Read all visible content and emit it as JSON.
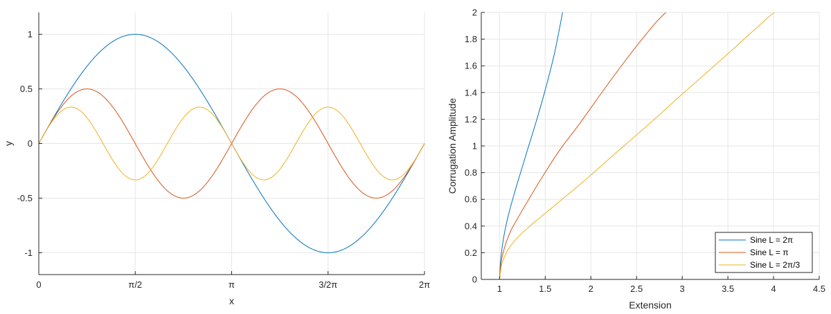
{
  "chart_data": [
    {
      "type": "line",
      "xlabel": "x",
      "ylabel": "y",
      "xlim": [
        0,
        6.2832
      ],
      "ylim": [
        -1.2,
        1.2
      ],
      "grid": true,
      "xticks": [
        {
          "value": 0,
          "label": "0"
        },
        {
          "value": 1.5708,
          "label": "π/2"
        },
        {
          "value": 3.1416,
          "label": "π"
        },
        {
          "value": 4.7124,
          "label": "3/2π"
        },
        {
          "value": 6.2832,
          "label": "2π"
        }
      ],
      "yticks": [
        {
          "value": 1,
          "label": "1"
        },
        {
          "value": 0.5,
          "label": "0.5"
        },
        {
          "value": 0,
          "label": "0"
        },
        {
          "value": -0.5,
          "label": "-0.5"
        },
        {
          "value": -1,
          "label": "-1"
        }
      ],
      "x": [
        0,
        0.3927,
        0.7854,
        1.1781,
        1.5708,
        1.9635,
        2.3562,
        2.7489,
        3.1416,
        3.5343,
        3.927,
        4.3197,
        4.7124,
        5.1051,
        5.4978,
        5.8905,
        6.2832
      ],
      "series": [
        {
          "color": "#0072BD",
          "values": [
            0,
            0.383,
            0.707,
            0.924,
            1,
            0.924,
            0.707,
            0.383,
            0,
            -0.383,
            -0.707,
            -0.924,
            -1,
            -0.924,
            -0.707,
            -0.383,
            0
          ]
        },
        {
          "color": "#D95319",
          "values": [
            0,
            0.354,
            0.5,
            0.354,
            0,
            -0.354,
            -0.5,
            -0.354,
            0,
            0.354,
            0.5,
            0.354,
            0,
            -0.354,
            -0.5,
            -0.354,
            0
          ]
        },
        {
          "color": "#EDB120",
          "values": [
            0,
            0.308,
            0.236,
            -0.128,
            -0.333,
            -0.128,
            0.236,
            0.308,
            0,
            -0.308,
            -0.236,
            0.128,
            0.333,
            0.128,
            -0.236,
            -0.308,
            0
          ]
        }
      ]
    },
    {
      "type": "line",
      "xlabel": "Extension",
      "ylabel": "Corrugation Amplitude",
      "xlim": [
        0.8,
        4.5
      ],
      "ylim": [
        0,
        2
      ],
      "grid": true,
      "legend_position": "bottom-right",
      "xticks": [
        "1",
        "1.5",
        "2",
        "2.5",
        "3",
        "3.5",
        "4",
        "4.5"
      ],
      "yticks": [
        "0",
        "0.2",
        "0.4",
        "0.6",
        "0.8",
        "1",
        "1.2",
        "1.4",
        "1.6",
        "1.8",
        "2"
      ],
      "series": [
        {
          "name": "Sine L = 2π",
          "color": "#0072BD",
          "x": [
            1,
            1.01,
            1.03,
            1.06,
            1.1,
            1.16,
            1.23,
            1.31,
            1.4,
            1.5,
            1.6,
            1.69
          ],
          "y": [
            0,
            0.13,
            0.25,
            0.37,
            0.49,
            0.64,
            0.8,
            0.98,
            1.18,
            1.42,
            1.69,
            2.0
          ]
        },
        {
          "name": "Sine L = π",
          "color": "#D95319",
          "x": [
            1,
            1.02,
            1.06,
            1.12,
            1.2,
            1.32,
            1.47,
            1.66,
            1.88,
            2.13,
            2.4,
            2.68,
            2.82
          ],
          "y": [
            0,
            0.14,
            0.25,
            0.36,
            0.46,
            0.6,
            0.77,
            0.97,
            1.17,
            1.41,
            1.66,
            1.9,
            2.0
          ]
        },
        {
          "name": "Sine L = 2π/3",
          "color": "#EDB120",
          "x": [
            1,
            1.02,
            1.06,
            1.13,
            1.25,
            1.42,
            1.65,
            1.93,
            2.26,
            2.63,
            3.02,
            3.45,
            3.92,
            4.01
          ],
          "y": [
            0,
            0.1,
            0.18,
            0.26,
            0.35,
            0.45,
            0.58,
            0.74,
            0.94,
            1.16,
            1.4,
            1.66,
            1.95,
            2.0
          ]
        }
      ]
    }
  ]
}
